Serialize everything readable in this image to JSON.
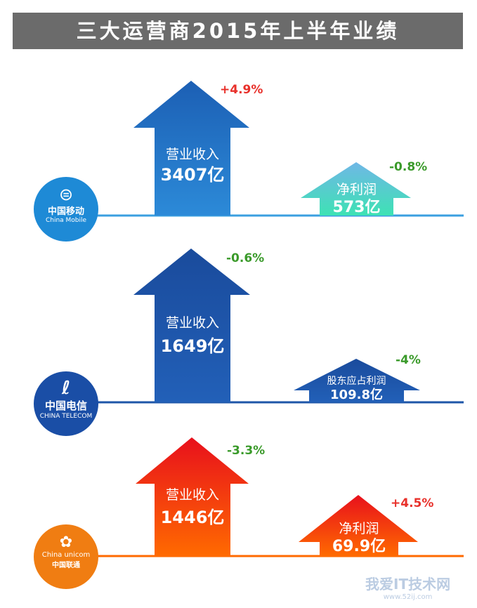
{
  "title": "三大运营商2015年上半年业绩",
  "colors": {
    "mobile_blue": "#1a6fc1",
    "telecom_blue": "#1e56a8",
    "unicom_orange": "#ff6a00",
    "up_red": "#e8302a",
    "down_green": "#3a9a2a",
    "mobile_teal": "#4fd6c2"
  },
  "chart_data": [
    {
      "type": "bar",
      "company_cn": "中国移动",
      "company_en": "China Mobile",
      "categories": [
        "营业收入",
        "净利润"
      ],
      "values": [
        3407,
        573
      ],
      "value_labels": [
        "3407亿",
        "573亿"
      ],
      "changes": [
        "+4.9%",
        "-0.8%"
      ]
    },
    {
      "type": "bar",
      "company_cn": "中国电信",
      "company_en": "CHINA TELECOM",
      "categories": [
        "营业收入",
        "股东应占利润"
      ],
      "values": [
        1649,
        109.8
      ],
      "value_labels": [
        "1649亿",
        "109.8亿"
      ],
      "changes": [
        "-0.6%",
        "-4%"
      ]
    },
    {
      "type": "bar",
      "company_cn": "中国联通",
      "company_en": "China unicom",
      "categories": [
        "营业收入",
        "净利润"
      ],
      "values": [
        1446,
        69.9
      ],
      "value_labels": [
        "1446亿",
        "69.9亿"
      ],
      "changes": [
        "-3.3%",
        "+4.5%"
      ]
    }
  ],
  "watermark": {
    "text": "我爱IT技术网",
    "url": "www.52ij.com"
  },
  "icons": [
    "china-mobile-logo-icon",
    "china-telecom-logo-icon",
    "china-unicom-logo-icon"
  ]
}
